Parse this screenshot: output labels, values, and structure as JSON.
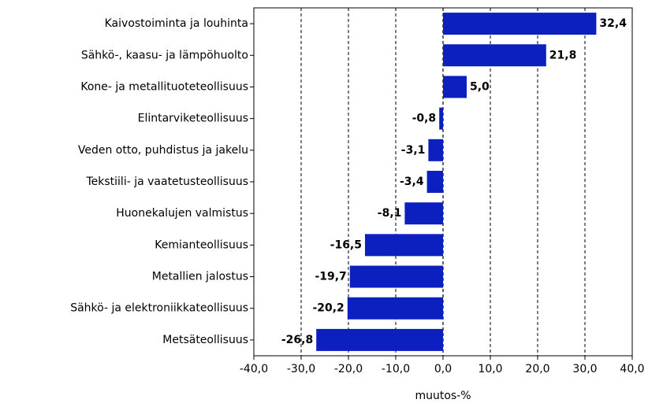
{
  "chart_data": {
    "type": "barh",
    "categories": [
      "Kaivostoiminta ja louhinta",
      "Sähkö-, kaasu- ja lämpöhuolto",
      "Kone- ja metallituoteteollisuus",
      "Elintarviketeollisuus",
      "Veden otto, puhdistus ja jakelu",
      "Tekstiili- ja vaatetusteollisuus",
      "Huonekalujen valmistus",
      "Kemianteollisuus",
      "Metallien jalostus",
      "Sähkö- ja elektroniikkateollisuus",
      "Metsäteollisuus"
    ],
    "values": [
      32.4,
      21.8,
      5.0,
      -0.8,
      -3.1,
      -3.4,
      -8.1,
      -16.5,
      -19.7,
      -20.2,
      -26.8
    ],
    "value_labels": [
      "32,4",
      "21,8",
      "5,0",
      "-0,8",
      "-3,1",
      "-3,4",
      "-8,1",
      "-16,5",
      "-19,7",
      "-20,2",
      "-26,8"
    ],
    "color": "#0b20bf",
    "xlabel": "muutos-%",
    "xlim": [
      -40,
      40
    ],
    "xticks": [
      {
        "value": -40,
        "label": "-40,0"
      },
      {
        "value": -30,
        "label": "-30,0"
      },
      {
        "value": -20,
        "label": "-20,0"
      },
      {
        "value": -10,
        "label": "-10,0"
      },
      {
        "value": 0,
        "label": "0,0"
      },
      {
        "value": 10,
        "label": "10,0"
      },
      {
        "value": 20,
        "label": "20,0"
      },
      {
        "value": 30,
        "label": "30,0"
      },
      {
        "value": 40,
        "label": "40,0"
      }
    ],
    "grid": true
  }
}
